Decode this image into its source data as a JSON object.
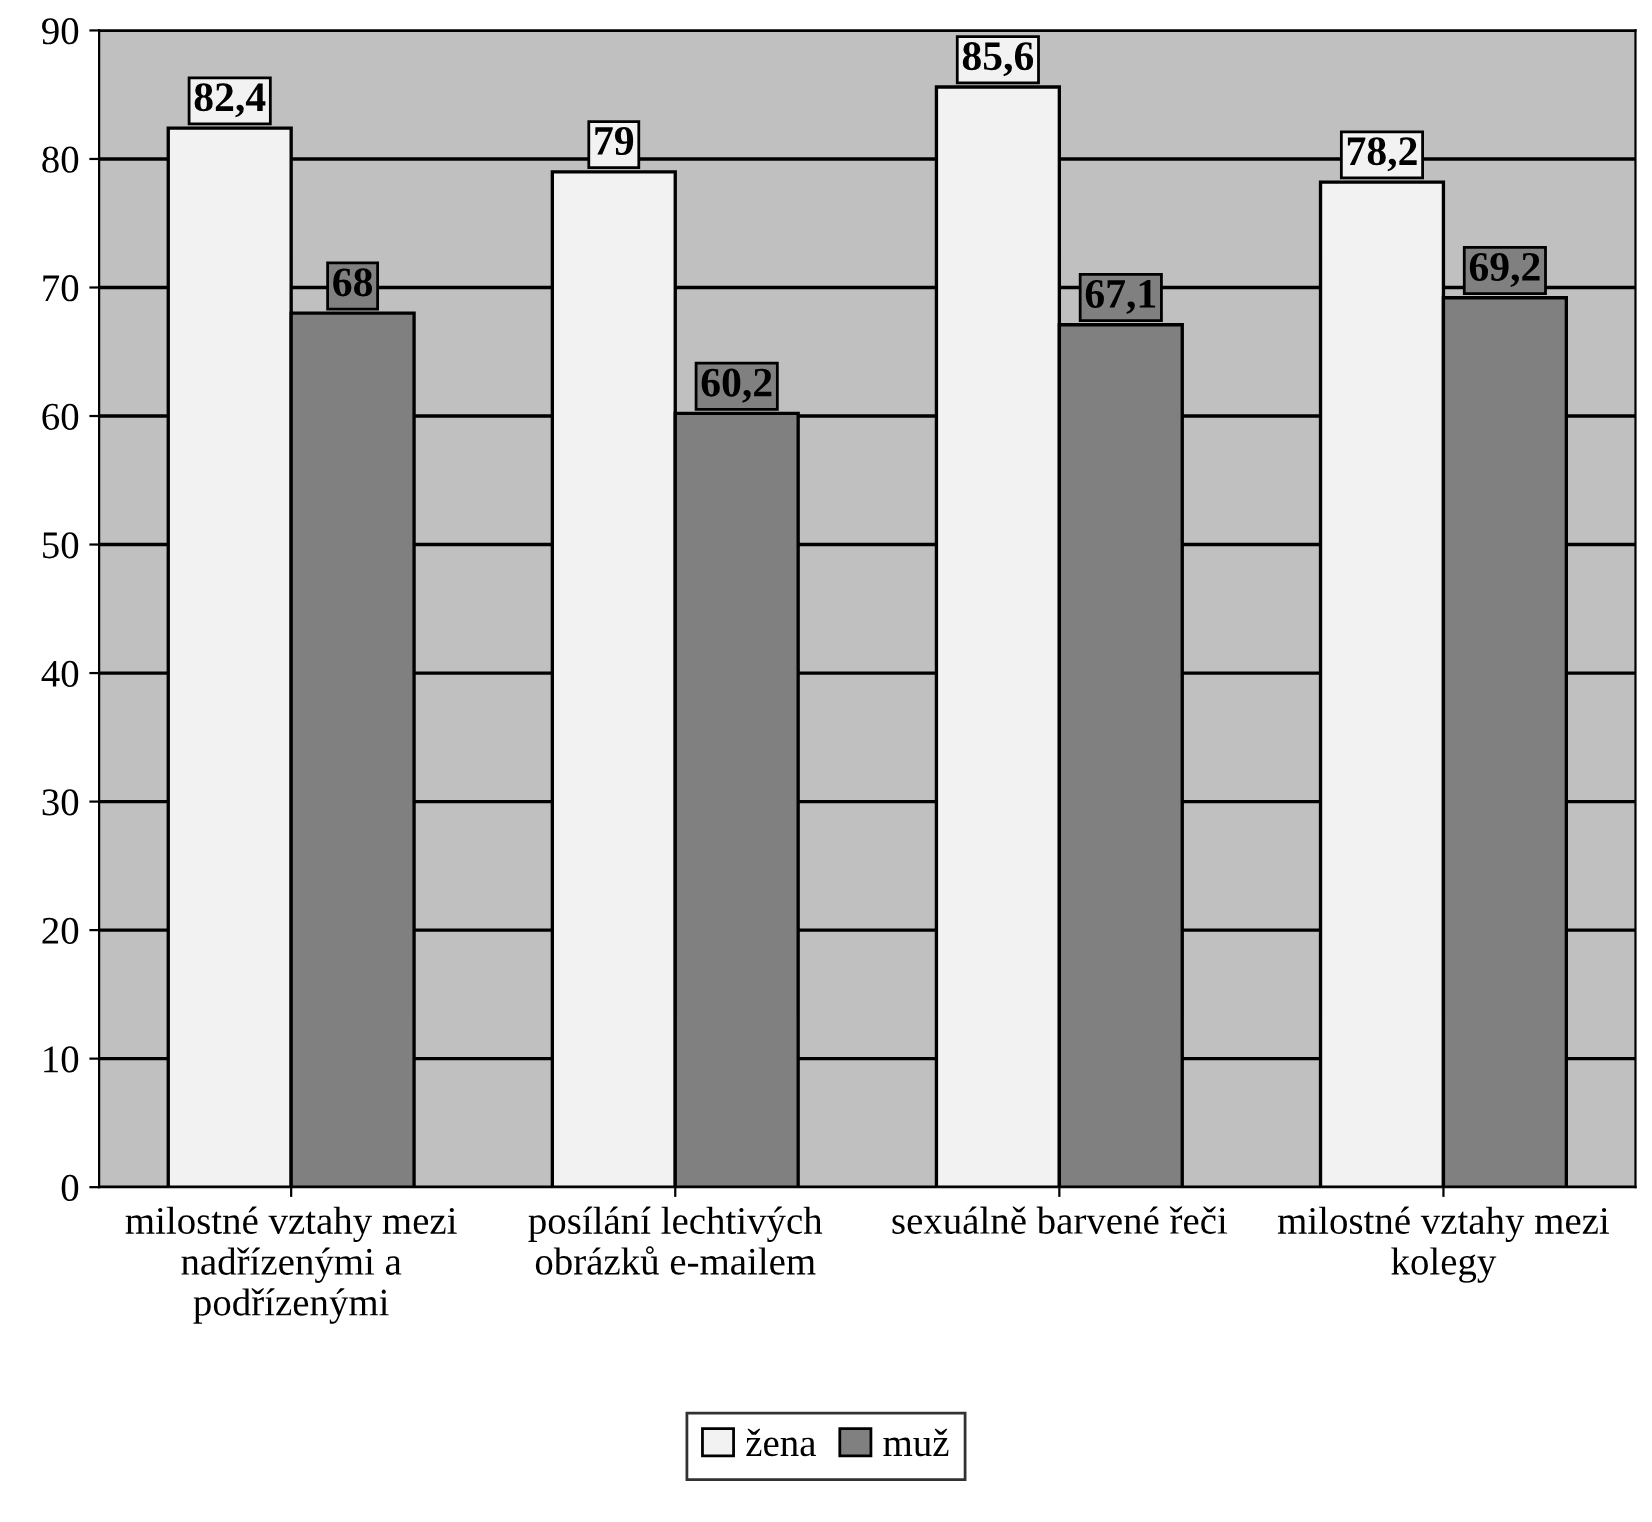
{
  "chart_data": {
    "type": "bar",
    "categories": [
      "milostné vztahy mezi nadřízenými a podřízenými",
      "posílání lechtivých obrázků e-mailem",
      "sexuálně barvené řeči",
      "milostné vztahy mezi kolegy"
    ],
    "series": [
      {
        "name": "žena",
        "color": "#f2f2f2",
        "values": [
          82.4,
          79,
          85.6,
          78.2
        ],
        "value_labels": [
          "82,4",
          "79",
          "85,6",
          "78,2"
        ]
      },
      {
        "name": "muž",
        "color": "#808080",
        "values": [
          68,
          60.2,
          67.1,
          69.2
        ],
        "value_labels": [
          "68",
          "60,2",
          "67,1",
          "69,2"
        ]
      }
    ],
    "ylim": [
      0,
      90
    ],
    "yticks": [
      0,
      10,
      20,
      30,
      40,
      50,
      60,
      70,
      80,
      90
    ],
    "grid": "y",
    "legend": "bottom"
  }
}
